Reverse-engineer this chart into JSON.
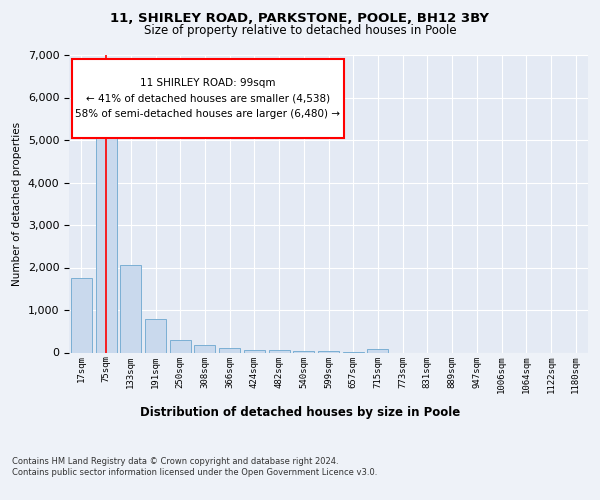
{
  "title1": "11, SHIRLEY ROAD, PARKSTONE, POOLE, BH12 3BY",
  "title2": "Size of property relative to detached houses in Poole",
  "xlabel": "Distribution of detached houses by size in Poole",
  "ylabel": "Number of detached properties",
  "footnote": "Contains HM Land Registry data © Crown copyright and database right 2024.\nContains public sector information licensed under the Open Government Licence v3.0.",
  "bin_labels": [
    "17sqm",
    "75sqm",
    "133sqm",
    "191sqm",
    "250sqm",
    "308sqm",
    "366sqm",
    "424sqm",
    "482sqm",
    "540sqm",
    "599sqm",
    "657sqm",
    "715sqm",
    "773sqm",
    "831sqm",
    "889sqm",
    "947sqm",
    "1006sqm",
    "1064sqm",
    "1122sqm",
    "1180sqm"
  ],
  "bar_values": [
    1750,
    5800,
    2050,
    800,
    300,
    175,
    100,
    65,
    50,
    35,
    25,
    20,
    80,
    0,
    0,
    0,
    0,
    0,
    0,
    0,
    0
  ],
  "bar_color": "#c9d9ed",
  "bar_edge_color": "#7bafd4",
  "red_line_x": 1.0,
  "annotation_box_text": "11 SHIRLEY ROAD: 99sqm\n← 41% of detached houses are smaller (4,538)\n58% of semi-detached houses are larger (6,480) →",
  "ylim": [
    0,
    7000
  ],
  "background_color": "#eef2f8",
  "plot_background": "#e4eaf4"
}
